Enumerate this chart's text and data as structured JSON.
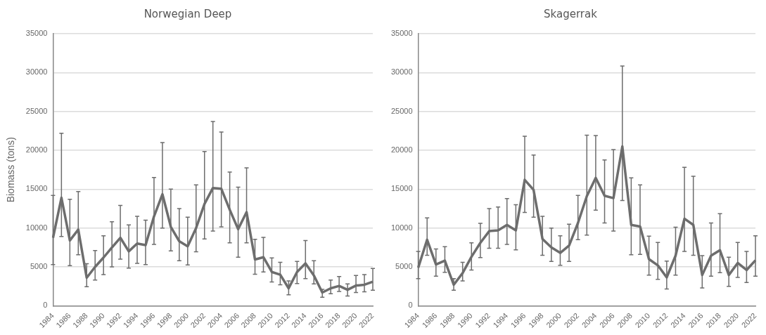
{
  "chart_data": [
    {
      "type": "line",
      "title": "Norwegian Deep",
      "ylabel": "Biomass (tons)",
      "categories": [
        "1984",
        null,
        "1986",
        null,
        "1988",
        null,
        "1990",
        null,
        "1992",
        null,
        "1994",
        null,
        "1996",
        null,
        "1998",
        null,
        "2000",
        null,
        "2002",
        null,
        "2004",
        null,
        "2006",
        null,
        "2008",
        null,
        "2010",
        null,
        "2012",
        null,
        "2014",
        null,
        "2016",
        null,
        "2018",
        null,
        "2020",
        null,
        "2022"
      ],
      "series": [
        {
          "color": "#6d6d6d",
          "values": [
            8750,
            13900,
            8400,
            9800,
            3600,
            5000,
            6200,
            7500,
            8750,
            7000,
            8000,
            7800,
            11500,
            14350,
            10150,
            8300,
            7650,
            10000,
            13100,
            15150,
            15050,
            12350,
            9850,
            12050,
            5950,
            6250,
            4350,
            4000,
            2250,
            4350,
            5450,
            3900,
            1700,
            2250,
            2550,
            2050,
            2600,
            2700,
            3100
          ],
          "errors": [
            [
              5300,
              14200
            ],
            [
              8900,
              22200
            ],
            [
              5150,
              13700
            ],
            [
              6550,
              14700
            ],
            [
              2450,
              5400
            ],
            [
              3300,
              7100
            ],
            [
              4000,
              9000
            ],
            [
              5000,
              10800
            ],
            [
              6000,
              12900
            ],
            [
              4850,
              10400
            ],
            [
              5450,
              11500
            ],
            [
              5300,
              11000
            ],
            [
              7900,
              16500
            ],
            [
              10000,
              21000
            ],
            [
              7050,
              15000
            ],
            [
              5800,
              12500
            ],
            [
              5250,
              11400
            ],
            [
              6950,
              15550
            ],
            [
              8600,
              19850
            ],
            [
              9600,
              23700
            ],
            [
              10150,
              22350
            ],
            [
              8100,
              17200
            ],
            [
              6250,
              15250
            ],
            [
              8100,
              17750
            ],
            [
              4050,
              8550
            ],
            [
              4350,
              8800
            ],
            [
              3050,
              6150
            ],
            [
              2700,
              5600
            ],
            [
              1400,
              3200
            ],
            [
              2850,
              5700
            ],
            [
              3500,
              8400
            ],
            [
              2800,
              5800
            ],
            [
              1100,
              2100
            ],
            [
              1550,
              3300
            ],
            [
              1850,
              3750
            ],
            [
              1250,
              2800
            ],
            [
              1700,
              3900
            ],
            [
              1800,
              4000
            ],
            [
              2000,
              4800
            ]
          ]
        }
      ],
      "ylim": [
        0,
        35000
      ],
      "yticks": [
        0,
        5000,
        10000,
        15000,
        20000,
        25000,
        30000,
        35000
      ],
      "grid": "y",
      "line_style": "solid",
      "marker": "none"
    },
    {
      "type": "line",
      "title": "Skagerrak",
      "categories": [
        "1984",
        null,
        "1986",
        null,
        "1988",
        null,
        "1990",
        null,
        "1992",
        null,
        "1994",
        null,
        "1996",
        null,
        "1998",
        null,
        "2000",
        null,
        "2002",
        null,
        "2004",
        null,
        "2006",
        null,
        "2008",
        null,
        "2010",
        null,
        "2012",
        null,
        "2014",
        null,
        "2016",
        null,
        "2018",
        null,
        "2020",
        null,
        "2022"
      ],
      "series": [
        {
          "color": "#6d6d6d",
          "values": [
            4900,
            8500,
            5300,
            5800,
            2700,
            4200,
            6300,
            8100,
            9600,
            9700,
            10400,
            9700,
            16200,
            14900,
            8600,
            7500,
            6800,
            7750,
            10650,
            14100,
            16450,
            14150,
            13850,
            20500,
            10400,
            10200,
            6000,
            5200,
            3650,
            6450,
            11200,
            10400,
            3950,
            6450,
            7150,
            3950,
            5500,
            4600,
            5850
          ],
          "errors": [
            [
              3500,
              7000
            ],
            [
              6500,
              11300
            ],
            [
              3800,
              7300
            ],
            [
              4300,
              7600
            ],
            [
              2000,
              3500
            ],
            [
              3200,
              5600
            ],
            [
              4600,
              8100
            ],
            [
              6200,
              10600
            ],
            [
              7400,
              12500
            ],
            [
              7400,
              12700
            ],
            [
              7900,
              13800
            ],
            [
              7200,
              13000
            ],
            [
              12000,
              21800
            ],
            [
              11400,
              19400
            ],
            [
              6500,
              11500
            ],
            [
              5700,
              10000
            ],
            [
              5200,
              9000
            ],
            [
              5700,
              10500
            ],
            [
              8500,
              14200
            ],
            [
              9100,
              21950
            ],
            [
              12300,
              21900
            ],
            [
              10650,
              18750
            ],
            [
              9600,
              20100
            ],
            [
              13550,
              30850
            ],
            [
              6550,
              16450
            ],
            [
              6600,
              15550
            ],
            [
              3950,
              8950
            ],
            [
              3400,
              8150
            ],
            [
              2150,
              5750
            ],
            [
              3950,
              10100
            ],
            [
              7000,
              17800
            ],
            [
              6500,
              16650
            ],
            [
              2300,
              6450
            ],
            [
              3800,
              10650
            ],
            [
              4250,
              11850
            ],
            [
              2500,
              6250
            ],
            [
              3650,
              8150
            ],
            [
              3000,
              7000
            ],
            [
              3800,
              9000
            ]
          ]
        }
      ],
      "ylim": [
        0,
        35000
      ],
      "yticks": [
        0,
        5000,
        10000,
        15000,
        20000,
        25000,
        30000,
        35000
      ],
      "grid": "y",
      "line_style": "solid",
      "marker": "none"
    }
  ]
}
